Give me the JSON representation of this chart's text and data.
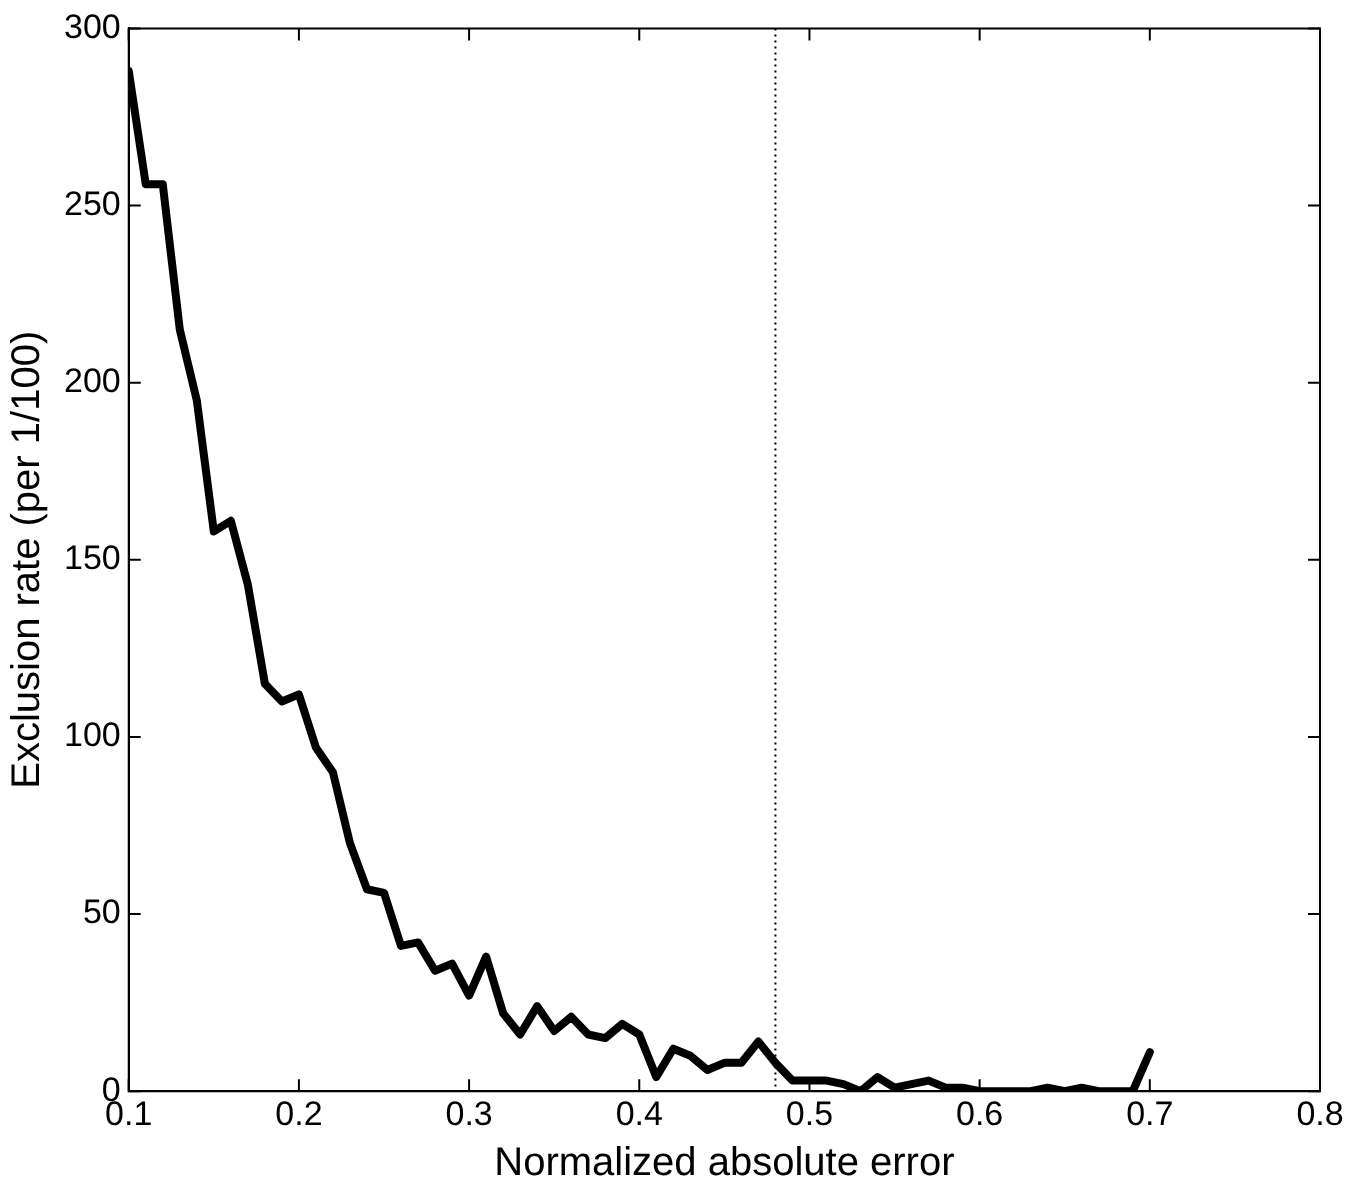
{
  "chart_data": {
    "type": "line",
    "xlabel": "Normalized absolute error",
    "ylabel": "Exclusion rate (per 1/100)",
    "x": [
      0.1,
      0.11,
      0.12,
      0.13,
      0.14,
      0.15,
      0.16,
      0.17,
      0.18,
      0.19,
      0.2,
      0.21,
      0.22,
      0.23,
      0.24,
      0.25,
      0.26,
      0.27,
      0.28,
      0.29,
      0.3,
      0.31,
      0.32,
      0.33,
      0.34,
      0.35,
      0.36,
      0.37,
      0.38,
      0.39,
      0.4,
      0.41,
      0.42,
      0.43,
      0.44,
      0.45,
      0.46,
      0.47,
      0.48,
      0.49,
      0.5,
      0.51,
      0.52,
      0.53,
      0.54,
      0.55,
      0.56,
      0.57,
      0.58,
      0.59,
      0.6,
      0.61,
      0.62,
      0.63,
      0.64,
      0.65,
      0.66,
      0.67,
      0.68,
      0.69,
      0.7
    ],
    "series": [
      {
        "color": "#000000",
        "values": [
          288,
          256,
          256,
          215,
          195,
          158,
          161,
          143,
          115,
          110,
          112,
          97,
          90,
          70,
          57,
          56,
          41,
          42,
          34,
          36,
          27,
          38,
          22,
          16,
          24,
          17,
          21,
          16,
          15,
          19,
          16,
          4,
          12,
          10,
          6,
          8,
          8,
          14,
          8,
          3,
          3,
          3,
          2,
          0,
          4,
          1,
          2,
          3,
          1,
          1,
          0,
          0,
          0,
          0,
          1,
          0,
          1,
          0,
          0,
          0,
          11
        ]
      }
    ],
    "xlim": [
      0.1,
      0.8
    ],
    "xticks": [
      0.1,
      0.2,
      0.3,
      0.4,
      0.5,
      0.6,
      0.7,
      0.8
    ],
    "ylim": [
      0,
      300
    ],
    "yticks": [
      0,
      50,
      100,
      150,
      200,
      250,
      300
    ],
    "ref_lines": [
      {
        "axis": "x",
        "value": 0.48,
        "color": "#000000",
        "line_style": "dotted"
      }
    ],
    "grid": false,
    "legend": false,
    "marker": "none",
    "line_style": "solid"
  }
}
